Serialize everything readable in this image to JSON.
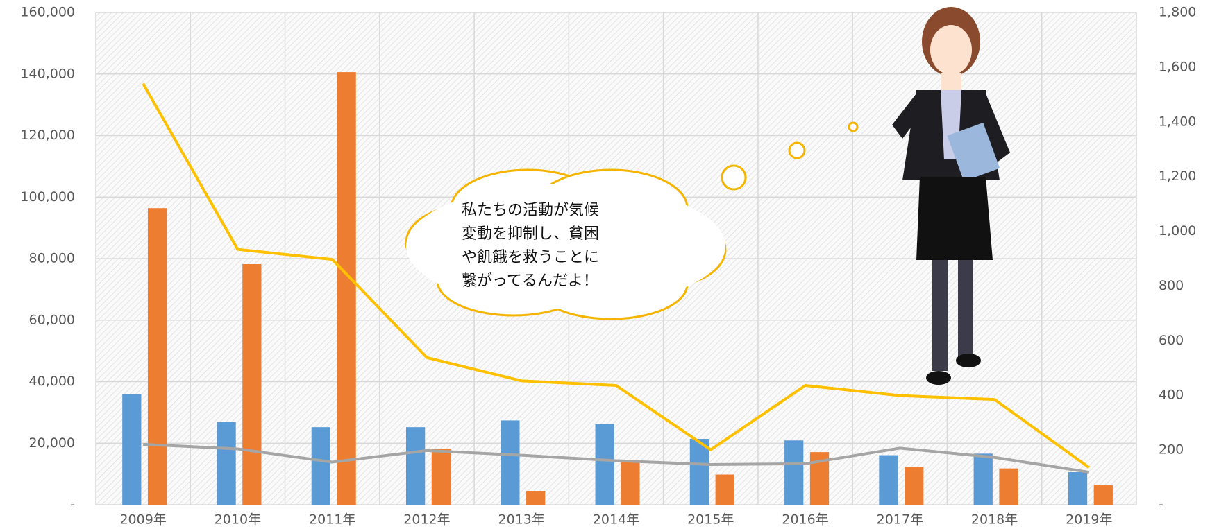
{
  "chart_data": {
    "type": "bar",
    "categories": [
      "2009年",
      "2010年",
      "2011年",
      "2012年",
      "2013年",
      "2014年",
      "2015年",
      "2016年",
      "2017年",
      "2018年",
      "2019年"
    ],
    "series": [
      {
        "type": "bar",
        "color": "#5b9bd5",
        "values": [
          36000,
          26900,
          25200,
          25200,
          27400,
          26200,
          21400,
          20900,
          16100,
          16600,
          10600
        ]
      },
      {
        "type": "bar",
        "color": "#ed7d31",
        "values": [
          96400,
          78200,
          140600,
          18100,
          4500,
          14600,
          9800,
          17100,
          12300,
          11800,
          6300
        ]
      },
      {
        "type": "line",
        "axis": "y2",
        "color": "#ffc000",
        "values": [
          1540,
          934,
          897,
          538,
          453,
          436,
          201,
          436,
          399,
          385,
          136
        ]
      },
      {
        "type": "line",
        "axis": "y2",
        "color": "#a5a5a5",
        "values": [
          221,
          204,
          156,
          198,
          181,
          161,
          147,
          150,
          207,
          173,
          119
        ]
      }
    ],
    "ylim": [
      0,
      160000
    ],
    "yticks": [
      {
        "value": 0,
        "label": "-"
      },
      {
        "value": 20000,
        "label": "20,000"
      },
      {
        "value": 40000,
        "label": "40,000"
      },
      {
        "value": 60000,
        "label": "60,000"
      },
      {
        "value": 80000,
        "label": "80,000"
      },
      {
        "value": 100000,
        "label": "100,000"
      },
      {
        "value": 120000,
        "label": "120,000"
      },
      {
        "value": 140000,
        "label": "140,000"
      },
      {
        "value": 160000,
        "label": "160,000"
      }
    ],
    "y2lim": [
      0,
      1800
    ],
    "y2ticks": [
      {
        "value": 0,
        "label": "-"
      },
      {
        "value": 200,
        "label": "200"
      },
      {
        "value": 400,
        "label": "400"
      },
      {
        "value": 600,
        "label": "600"
      },
      {
        "value": 800,
        "label": "800"
      },
      {
        "value": 1000,
        "label": "1,000"
      },
      {
        "value": 1200,
        "label": "1,200"
      },
      {
        "value": 1400,
        "label": "1,400"
      },
      {
        "value": 1600,
        "label": "1,600"
      },
      {
        "value": 1800,
        "label": "1,800"
      }
    ],
    "grid": true,
    "annotation": [
      "私たちの活動が気候",
      "変動を抑制し、貧困",
      "や飢餓を救うことに",
      "繋がってるんだよ！"
    ]
  }
}
